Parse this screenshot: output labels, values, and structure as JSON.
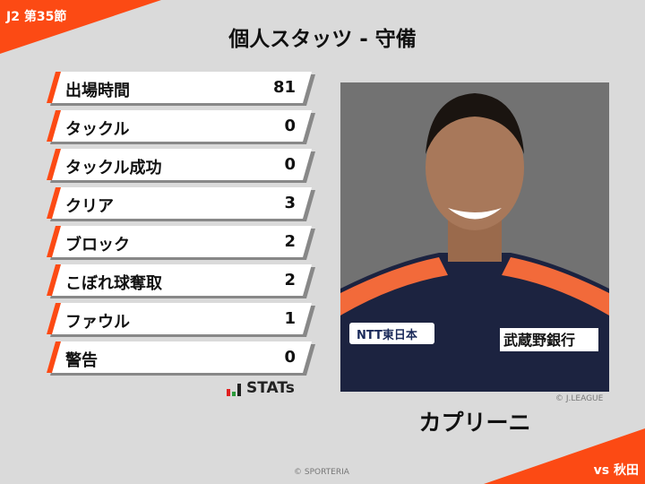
{
  "header": {
    "round": "J2 第35節",
    "title": "個人スタッツ - 守備",
    "opponent": "vs 秋田"
  },
  "stats": [
    {
      "label": "出場時間",
      "value": "81"
    },
    {
      "label": "タックル",
      "value": "0"
    },
    {
      "label": "タックル成功",
      "value": "0"
    },
    {
      "label": "クリア",
      "value": "3"
    },
    {
      "label": "ブロック",
      "value": "2"
    },
    {
      "label": "こぼれ球奪取",
      "value": "2"
    },
    {
      "label": "ファウル",
      "value": "1"
    },
    {
      "label": "警告",
      "value": "0"
    }
  ],
  "logo": {
    "text": "STATs"
  },
  "player": {
    "name": "カプリーニ",
    "photo_credit": "© J.LEAGUE",
    "sponsors": [
      "NTT東日本",
      "武蔵野銀行"
    ]
  },
  "footer": {
    "copyright": "© SPORTERIA"
  },
  "colors": {
    "accent": "#fc4a14",
    "background": "#dadada"
  }
}
